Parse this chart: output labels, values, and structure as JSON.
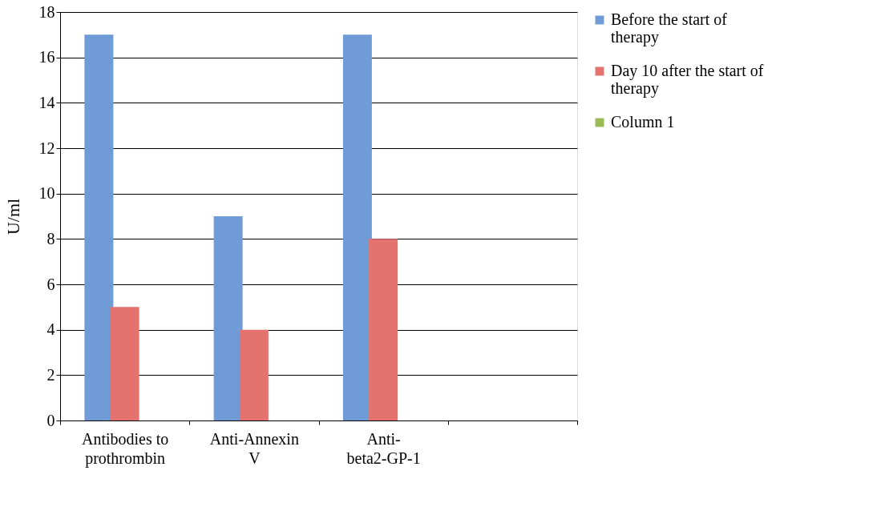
{
  "chart_data": {
    "type": "bar",
    "ylabel": "U/ml",
    "categories": [
      "Antibodies to prothrombin",
      "Anti-Annexin V",
      "Anti-beta2-GP-1",
      null
    ],
    "series": [
      {
        "name": "Before the start of therapy",
        "color": "#6f9bd6",
        "values": [
          17,
          9,
          17,
          null
        ]
      },
      {
        "name": "Day 10 after the start of therapy",
        "color": "#e47370",
        "values": [
          5,
          4,
          8,
          null
        ]
      },
      {
        "name": "Column 1",
        "color": "#9bbb59",
        "values": [
          null,
          null,
          null,
          null
        ]
      }
    ],
    "ylim": [
      0,
      18
    ],
    "yticks": [
      0,
      2,
      4,
      6,
      8,
      10,
      12,
      14,
      16,
      18
    ],
    "grid": "y",
    "legend": "right"
  }
}
